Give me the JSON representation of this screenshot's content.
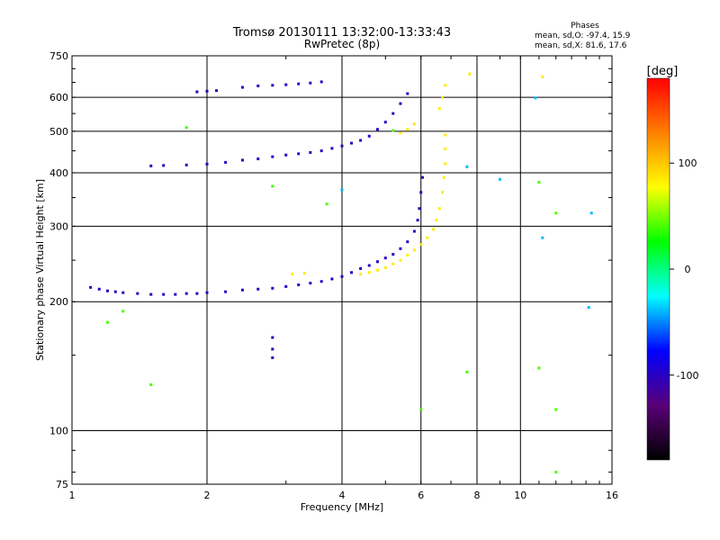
{
  "chart_data": {
    "type": "scatter",
    "title": "Tromsø 20130111 13:32:00-13:33:43",
    "subtitle": "RwPretec (8p)",
    "xlabel": "Frequency [MHz]",
    "ylabel": "Stationary phase Virtual Height [km]",
    "x_scale": "log",
    "y_scale": "log",
    "xlim": [
      1,
      16
    ],
    "ylim": [
      75,
      750
    ],
    "x_ticks": [
      1,
      2,
      4,
      6,
      8,
      10,
      16
    ],
    "y_ticks": [
      75,
      100,
      200,
      300,
      400,
      500,
      600,
      750
    ],
    "x_gridlines": [
      2,
      4,
      6,
      8,
      10
    ],
    "y_gridlines": [
      100,
      200,
      300,
      400,
      500,
      600
    ],
    "grid": true,
    "phases_box": {
      "title": "Phases",
      "line_o": "mean, sd,O: -97.4, 15.9",
      "line_x": "mean, sd,X:  81.6, 17.6"
    },
    "colorbar": {
      "label": "[deg]",
      "range": [
        -180,
        180
      ],
      "ticks": [
        -100,
        0,
        100
      ],
      "colors": [
        "#000000",
        "#5a0078",
        "#0000ff",
        "#00ffff",
        "#00ff00",
        "#ffff00",
        "#ff8000",
        "#ff0000"
      ]
    },
    "series": [
      {
        "mode": "O",
        "phase_deg": -100,
        "points": [
          [
            1.1,
            216
          ],
          [
            1.15,
            214
          ],
          [
            1.2,
            212
          ],
          [
            1.25,
            211
          ],
          [
            1.3,
            210
          ],
          [
            1.4,
            209
          ],
          [
            1.5,
            208
          ],
          [
            1.6,
            208
          ],
          [
            1.7,
            208
          ],
          [
            1.8,
            209
          ],
          [
            1.9,
            209
          ],
          [
            2.0,
            210
          ],
          [
            2.2,
            211
          ],
          [
            2.4,
            213
          ],
          [
            2.6,
            214
          ],
          [
            2.8,
            215
          ],
          [
            3.0,
            217
          ],
          [
            3.2,
            219
          ],
          [
            3.4,
            221
          ],
          [
            3.6,
            223
          ],
          [
            3.8,
            226
          ],
          [
            4.0,
            229
          ],
          [
            4.2,
            234
          ],
          [
            4.4,
            239
          ],
          [
            4.6,
            243
          ],
          [
            4.8,
            248
          ],
          [
            5.0,
            253
          ],
          [
            5.2,
            258
          ],
          [
            5.4,
            266
          ],
          [
            5.6,
            276
          ],
          [
            5.8,
            292
          ],
          [
            5.9,
            310
          ],
          [
            5.95,
            330
          ],
          [
            6.0,
            360
          ],
          [
            6.05,
            390
          ],
          [
            1.5,
            415
          ],
          [
            1.6,
            416
          ],
          [
            1.8,
            417
          ],
          [
            2.0,
            419
          ],
          [
            2.2,
            423
          ],
          [
            2.4,
            428
          ],
          [
            2.6,
            431
          ],
          [
            2.8,
            436
          ],
          [
            3.0,
            440
          ],
          [
            3.2,
            443
          ],
          [
            3.4,
            446
          ],
          [
            3.6,
            450
          ],
          [
            3.8,
            456
          ],
          [
            4.0,
            462
          ],
          [
            4.2,
            469
          ],
          [
            4.4,
            476
          ],
          [
            4.6,
            487
          ],
          [
            4.8,
            505
          ],
          [
            5.0,
            525
          ],
          [
            5.2,
            550
          ],
          [
            5.4,
            580
          ],
          [
            5.6,
            612
          ],
          [
            1.9,
            618
          ],
          [
            2.0,
            620
          ],
          [
            2.1,
            622
          ],
          [
            2.4,
            633
          ],
          [
            2.6,
            638
          ],
          [
            2.8,
            640
          ],
          [
            3.0,
            642
          ],
          [
            3.2,
            645
          ],
          [
            3.4,
            648
          ],
          [
            3.6,
            652
          ],
          [
            2.8,
            165
          ],
          [
            2.8,
            155
          ],
          [
            2.8,
            148
          ]
        ]
      },
      {
        "mode": "X",
        "phase_deg": 85,
        "points": [
          [
            3.1,
            232
          ],
          [
            3.3,
            233
          ],
          [
            4.4,
            232
          ],
          [
            4.6,
            234
          ],
          [
            4.8,
            237
          ],
          [
            5.0,
            240
          ],
          [
            5.2,
            245
          ],
          [
            5.4,
            250
          ],
          [
            5.6,
            257
          ],
          [
            5.8,
            264
          ],
          [
            6.0,
            272
          ],
          [
            6.2,
            282
          ],
          [
            6.4,
            295
          ],
          [
            6.5,
            310
          ],
          [
            6.6,
            330
          ],
          [
            6.7,
            360
          ],
          [
            6.75,
            390
          ],
          [
            6.8,
            420
          ],
          [
            6.8,
            455
          ],
          [
            6.8,
            490
          ],
          [
            5.4,
            495
          ],
          [
            5.6,
            505
          ],
          [
            5.8,
            520
          ],
          [
            6.6,
            565
          ],
          [
            6.7,
            600
          ],
          [
            6.8,
            640
          ],
          [
            7.7,
            680
          ],
          [
            11.2,
            670
          ]
        ]
      },
      {
        "mode": "scattered",
        "phase_deg": 40,
        "points": [
          [
            1.5,
            128
          ],
          [
            1.3,
            190
          ],
          [
            1.8,
            510
          ],
          [
            5.2,
            502
          ],
          [
            6.0,
            112
          ],
          [
            7.6,
            137
          ],
          [
            11.0,
            140
          ],
          [
            12.0,
            112
          ],
          [
            12.0,
            80
          ],
          [
            11.0,
            380
          ],
          [
            12.0,
            322
          ],
          [
            2.8,
            372
          ],
          [
            3.7,
            338
          ],
          [
            1.2,
            179
          ]
        ]
      },
      {
        "mode": "sparse",
        "phase_deg": -40,
        "points": [
          [
            10.8,
            598
          ],
          [
            9.0,
            386
          ],
          [
            4.0,
            365
          ],
          [
            14.4,
            322
          ],
          [
            11.2,
            282
          ],
          [
            14.2,
            194
          ],
          [
            7.6,
            413
          ]
        ]
      }
    ]
  }
}
